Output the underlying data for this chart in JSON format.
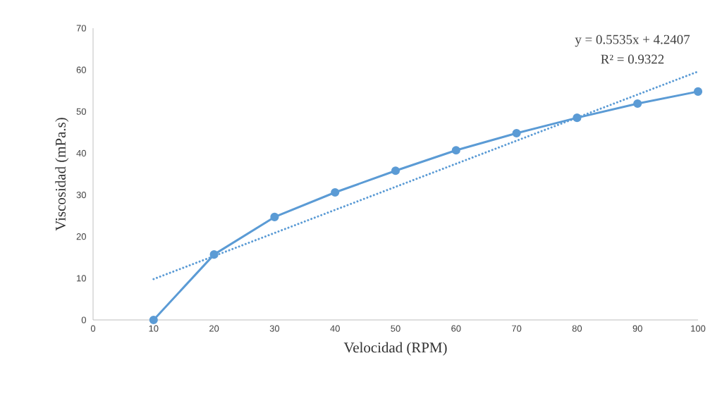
{
  "chart_data": {
    "type": "line",
    "xlabel": "Velocidad (RPM)",
    "ylabel": "Viscosidad (mPa.s)",
    "x": [
      10,
      20,
      30,
      40,
      50,
      60,
      70,
      80,
      90,
      100
    ],
    "series": [
      {
        "color": "#5b9bd5",
        "values": [
          0,
          15.7,
          24.7,
          30.6,
          35.8,
          40.7,
          44.8,
          48.5,
          51.9,
          54.8
        ],
        "marker": "circle",
        "line_style": "solid"
      },
      {
        "type": "line",
        "color": "#5b9bd5",
        "x": [
          10,
          100
        ],
        "values": [
          9.8,
          59.6
        ],
        "marker": "none",
        "line_style": "dotted"
      }
    ],
    "annotations": [
      "y = 0.5535x + 4.2407",
      "R² = 0.9322"
    ],
    "xlim": [
      0,
      100
    ],
    "ylim": [
      0,
      70
    ],
    "xticks": [
      0,
      10,
      20,
      30,
      40,
      50,
      60,
      70,
      80,
      90,
      100
    ],
    "yticks": [
      0,
      10,
      20,
      30,
      40,
      50,
      60,
      70
    ],
    "grid": false
  }
}
